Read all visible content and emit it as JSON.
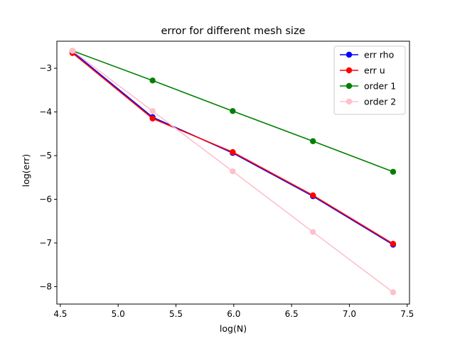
{
  "chart_data": {
    "type": "line",
    "title": "error for different mesh size",
    "xlabel": "log(N)",
    "ylabel": "log(err)",
    "xlim": [
      4.47,
      7.52
    ],
    "ylim": [
      -8.4,
      -2.38
    ],
    "x_ticks": [
      4.5,
      5.0,
      5.5,
      6.0,
      6.5,
      7.0,
      7.5
    ],
    "x_tick_labels": [
      "4.5",
      "5.0",
      "5.5",
      "6.0",
      "6.5",
      "7.0",
      "7.5"
    ],
    "y_ticks": [
      -8,
      -7,
      -6,
      -5,
      -4,
      -3
    ],
    "y_tick_labels": [
      "−8",
      "−7",
      "−6",
      "−5",
      "−4",
      "−3"
    ],
    "grid": false,
    "legend_position": "top-right",
    "x": [
      4.605,
      5.298,
      5.991,
      6.685,
      7.378
    ],
    "series": [
      {
        "name": "err rho",
        "color": "#0000ff",
        "values": [
          -2.62,
          -4.12,
          -4.94,
          -5.93,
          -7.04
        ]
      },
      {
        "name": "err u",
        "color": "#ff0000",
        "values": [
          -2.65,
          -4.15,
          -4.92,
          -5.91,
          -7.02
        ]
      },
      {
        "name": "order 1",
        "color": "#008000",
        "values": [
          -2.6,
          -3.28,
          -3.98,
          -4.67,
          -5.37
        ]
      },
      {
        "name": "order 2",
        "color": "#ffc0cb",
        "values": [
          -2.6,
          -3.98,
          -5.36,
          -6.75,
          -8.13
        ]
      }
    ]
  }
}
